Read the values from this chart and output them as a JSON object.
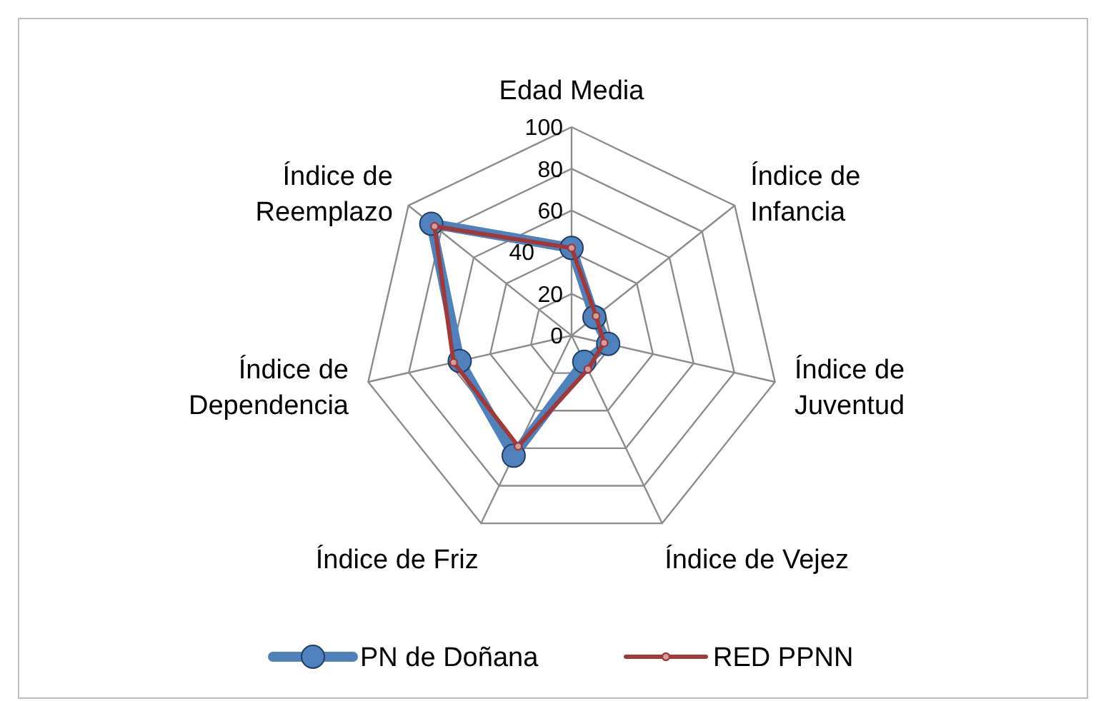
{
  "chart_data": {
    "type": "radar",
    "categories": [
      "Edad Media",
      "Índice de Infancia",
      "Índice de Juventud",
      "Índice de Vejez",
      "Índice de Friz",
      "Índice de Dependencia",
      "Índice de Reemplazo"
    ],
    "series": [
      {
        "name": "PN de Doñana",
        "color": "#4f81bd",
        "values": [
          42,
          14,
          18,
          14,
          64,
          55,
          86
        ]
      },
      {
        "name": "RED PPNN",
        "color": "#a0393a",
        "values": [
          42,
          15,
          16,
          18,
          59,
          58,
          84
        ]
      }
    ],
    "ylim": [
      0,
      100
    ],
    "yticks": [
      0,
      20,
      40,
      60,
      80,
      100
    ],
    "grid": true,
    "legend": "bottom",
    "marker": "circle",
    "line_style": "solid"
  }
}
